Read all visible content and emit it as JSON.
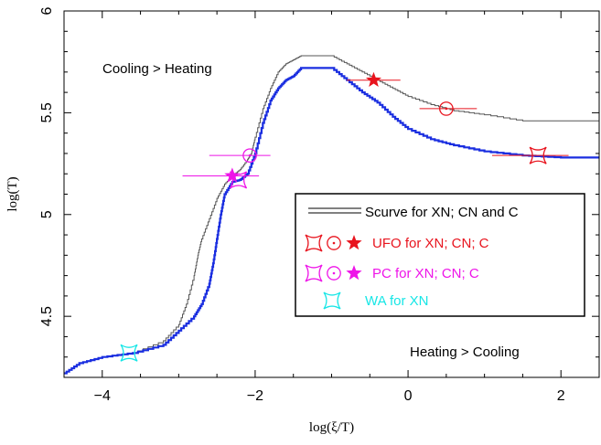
{
  "chart_data": {
    "type": "line",
    "title": "",
    "xlabel": "log(ξ/T)",
    "ylabel": "log(T)",
    "xlim": [
      -4.5,
      2.5
    ],
    "ylim": [
      4.2,
      6.0
    ],
    "xticks": [
      -4,
      -2,
      0,
      2
    ],
    "xtick_labels": [
      "−4",
      "−2",
      "0",
      "2"
    ],
    "yticks": [
      4.5,
      5,
      5.5,
      6
    ],
    "ytick_labels": [
      "4.5",
      "5",
      "5.5",
      "6"
    ],
    "grid": false,
    "legend_position": "right-middle",
    "annotations": [
      {
        "text": "Cooling > Heating",
        "position": "top-left"
      },
      {
        "text": "Heating > Cooling",
        "position": "bottom-right"
      }
    ],
    "series": [
      {
        "name": "Scurve for XN; CN and C",
        "role": "scurve-black",
        "color": "#555555",
        "x": [
          -4.5,
          -4.3,
          -4.0,
          -3.6,
          -3.2,
          -3.0,
          -2.9,
          -2.8,
          -2.75,
          -2.7,
          -2.6,
          -2.5,
          -2.4,
          -2.3,
          -2.2,
          -2.1,
          -2.05,
          -2.0,
          -1.9,
          -1.8,
          -1.7,
          -1.6,
          -1.5,
          -1.4,
          -1.2,
          -1.0,
          -0.8,
          -0.6,
          -0.4,
          -0.2,
          0.0,
          0.3,
          0.6,
          1.0,
          1.5,
          2.0,
          2.5
        ],
        "y": [
          4.22,
          4.27,
          4.3,
          4.32,
          4.38,
          4.46,
          4.56,
          4.7,
          4.8,
          4.88,
          4.98,
          5.08,
          5.15,
          5.19,
          5.22,
          5.27,
          5.3,
          5.38,
          5.52,
          5.62,
          5.7,
          5.74,
          5.76,
          5.78,
          5.78,
          5.78,
          5.74,
          5.7,
          5.66,
          5.62,
          5.58,
          5.54,
          5.51,
          5.49,
          5.46,
          5.46,
          5.46
        ]
      },
      {
        "name": "",
        "role": "scurve-blue",
        "color": "#1a2ee0",
        "x": [
          -4.5,
          -4.3,
          -4.0,
          -3.6,
          -3.2,
          -3.0,
          -2.8,
          -2.7,
          -2.6,
          -2.55,
          -2.5,
          -2.45,
          -2.4,
          -2.3,
          -2.2,
          -2.1,
          -2.0,
          -1.9,
          -1.8,
          -1.7,
          -1.6,
          -1.5,
          -1.4,
          -1.2,
          -1.0,
          -0.8,
          -0.6,
          -0.4,
          -0.2,
          0.0,
          0.3,
          0.6,
          1.0,
          1.5,
          2.0,
          2.5
        ],
        "y": [
          4.22,
          4.27,
          4.3,
          4.32,
          4.36,
          4.43,
          4.5,
          4.56,
          4.66,
          4.76,
          4.88,
          5.0,
          5.1,
          5.16,
          5.17,
          5.2,
          5.3,
          5.45,
          5.56,
          5.62,
          5.66,
          5.68,
          5.72,
          5.72,
          5.72,
          5.66,
          5.6,
          5.55,
          5.48,
          5.42,
          5.37,
          5.34,
          5.31,
          5.29,
          5.28,
          5.28
        ]
      }
    ],
    "points": [
      {
        "series": "UFO for XN; CN; C",
        "marker": "star",
        "color": "#e8141e",
        "x": -0.45,
        "y": 5.66,
        "xerr_low": -0.8,
        "xerr_high": -0.1
      },
      {
        "series": "UFO for XN; CN; C",
        "marker": "circle-dot",
        "color": "#e8141e",
        "x": 0.5,
        "y": 5.52,
        "xerr_low": 0.15,
        "xerr_high": 0.9
      },
      {
        "series": "UFO for XN; CN; C",
        "marker": "astroid",
        "color": "#e8141e",
        "x": 1.7,
        "y": 5.29,
        "xerr_low": 1.1,
        "xerr_high": 2.1
      },
      {
        "series": "PC for XN; CN; C",
        "marker": "star",
        "color": "#ee14e8",
        "x": -2.3,
        "y": 5.19,
        "xerr_low": -2.95,
        "xerr_high": -1.95
      },
      {
        "series": "PC for XN; CN; C",
        "marker": "circle-dot",
        "color": "#ee14e8",
        "x": -2.07,
        "y": 5.29,
        "xerr_low": -2.6,
        "xerr_high": -1.8
      },
      {
        "series": "PC for XN; CN; C",
        "marker": "astroid",
        "color": "#ee14e8",
        "x": -2.22,
        "y": 5.17
      },
      {
        "series": "WA for XN",
        "marker": "astroid",
        "color": "#17e6e6",
        "x": -3.65,
        "y": 4.32
      }
    ],
    "legend": [
      {
        "label": "Scurve for XN; CN and C",
        "color": "#000000",
        "markers": [
          "double-line"
        ]
      },
      {
        "label": "UFO for XN; CN; C",
        "color": "#e8141e",
        "markers": [
          "astroid",
          "circle-dot",
          "star"
        ]
      },
      {
        "label": "PC for XN; CN; C",
        "color": "#ee14e8",
        "markers": [
          "astroid",
          "circle-dot",
          "star"
        ]
      },
      {
        "label": "WA for XN",
        "color": "#17e6e6",
        "markers": [
          "astroid"
        ]
      }
    ]
  }
}
